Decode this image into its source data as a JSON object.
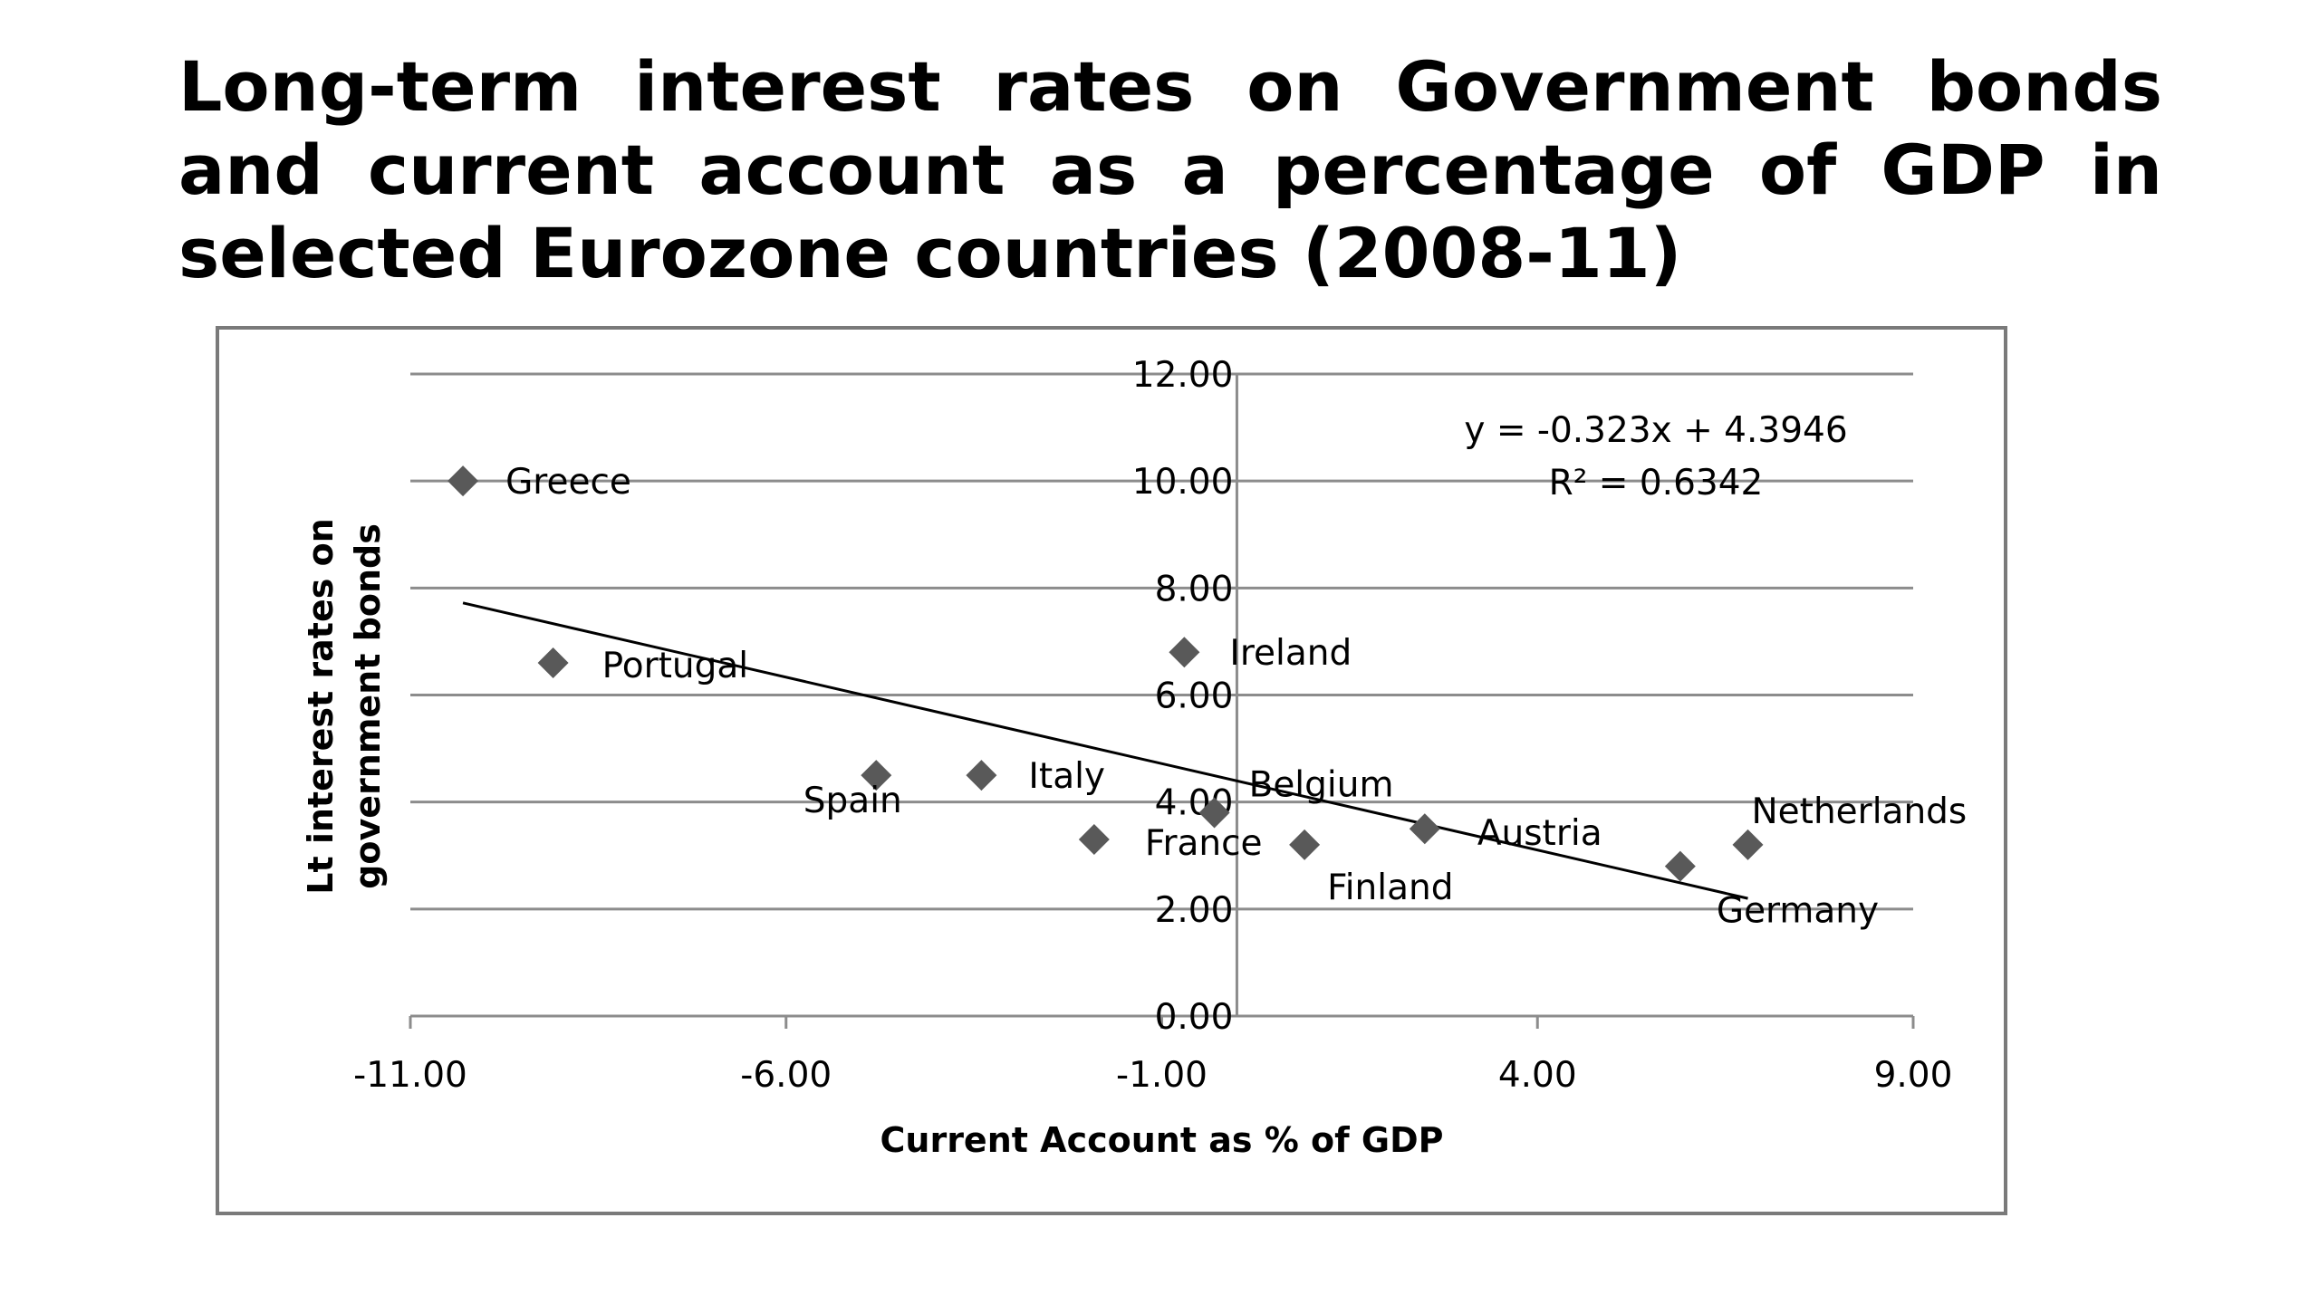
{
  "slide": {
    "title": "Long-term interest rates on Government bonds and current account as a percentage of GDP in selected Eurozone countries (2008-11)"
  },
  "chart_data": {
    "type": "scatter",
    "xlabel": "Current Account as % of GDP",
    "ylabel": "Lt interest rates on government bonds",
    "xlim": [
      -11,
      9
    ],
    "ylim": [
      0,
      12
    ],
    "x_ticks": [
      "-11.00",
      "-6.00",
      "-1.00",
      "4.00",
      "9.00"
    ],
    "y_ticks": [
      "0.00",
      "2.00",
      "4.00",
      "6.00",
      "8.00",
      "10.00",
      "12.00"
    ],
    "grid": "horizontal",
    "marker": "diamond",
    "marker_color": "#595959",
    "points": [
      {
        "label": "Greece",
        "x": -10.3,
        "y": 10.0
      },
      {
        "label": "Portugal",
        "x": -9.1,
        "y": 6.6
      },
      {
        "label": "Spain",
        "x": -4.8,
        "y": 4.5
      },
      {
        "label": "Italy",
        "x": -3.4,
        "y": 4.5
      },
      {
        "label": "France",
        "x": -1.9,
        "y": 3.3
      },
      {
        "label": "Ireland",
        "x": -0.7,
        "y": 6.8
      },
      {
        "label": "Belgium",
        "x": -0.3,
        "y": 3.8
      },
      {
        "label": "Finland",
        "x": 0.9,
        "y": 3.2
      },
      {
        "label": "Austria",
        "x": 2.5,
        "y": 3.5
      },
      {
        "label": "Germany",
        "x": 5.9,
        "y": 2.8
      },
      {
        "label": "Netherlands",
        "x": 6.8,
        "y": 3.2
      }
    ],
    "trendline": {
      "slope": -0.323,
      "intercept": 4.3946,
      "x_range": [
        -10.3,
        6.8
      ],
      "equation": "y = -0.323x + 4.3946",
      "r_squared": "R² = 0.6342"
    }
  }
}
